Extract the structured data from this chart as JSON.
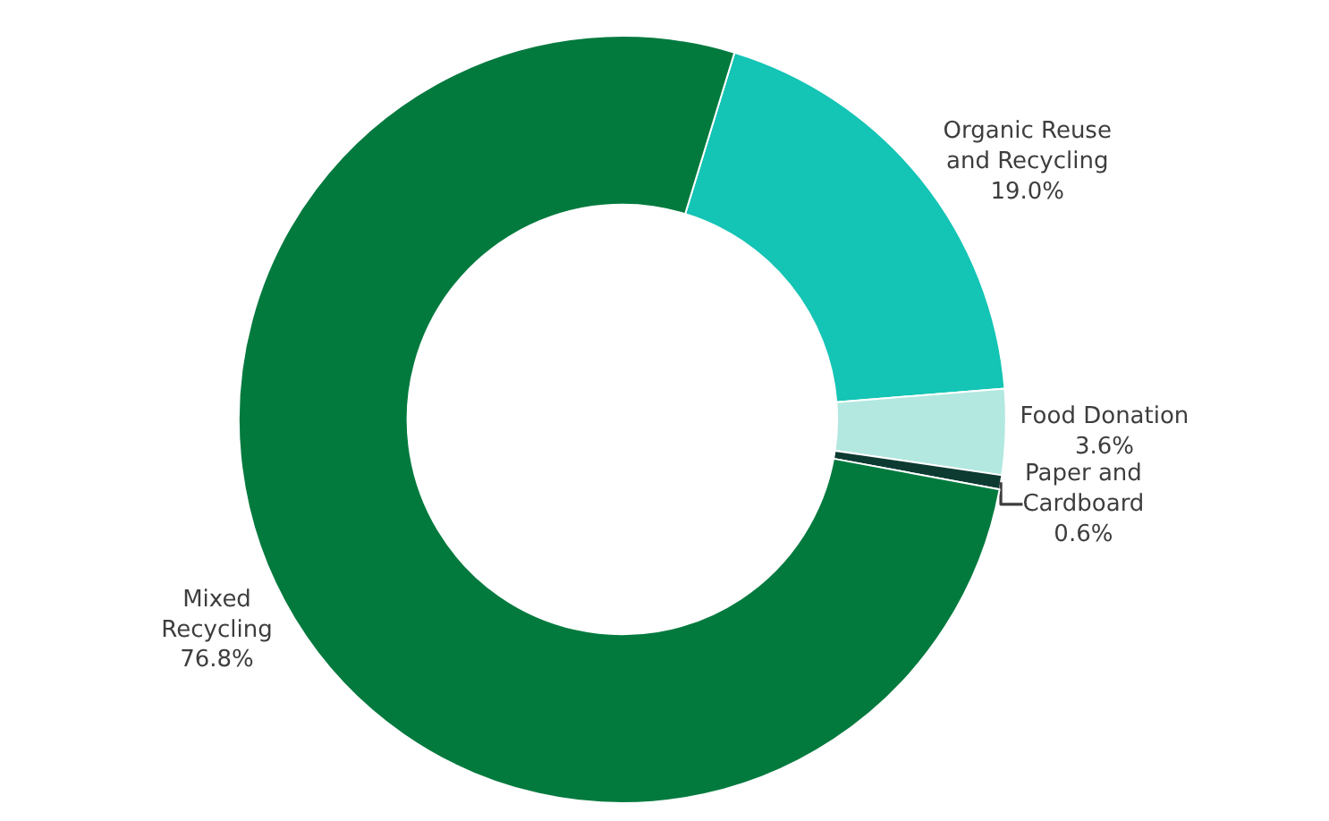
{
  "chart_data": {
    "type": "donut",
    "categories": [
      "Organic Reuse and Recycling",
      "Food Donation",
      "Paper and Cardboard",
      "Mixed Recycling"
    ],
    "values": [
      19.0,
      3.6,
      0.6,
      76.8
    ],
    "value_labels": [
      "19.0%",
      "3.6%",
      "0.6%",
      "76.8%"
    ],
    "colors": [
      "#14c4b4",
      "#b2e8e0",
      "#0d3b32",
      "#027a3e"
    ],
    "legend": false
  }
}
